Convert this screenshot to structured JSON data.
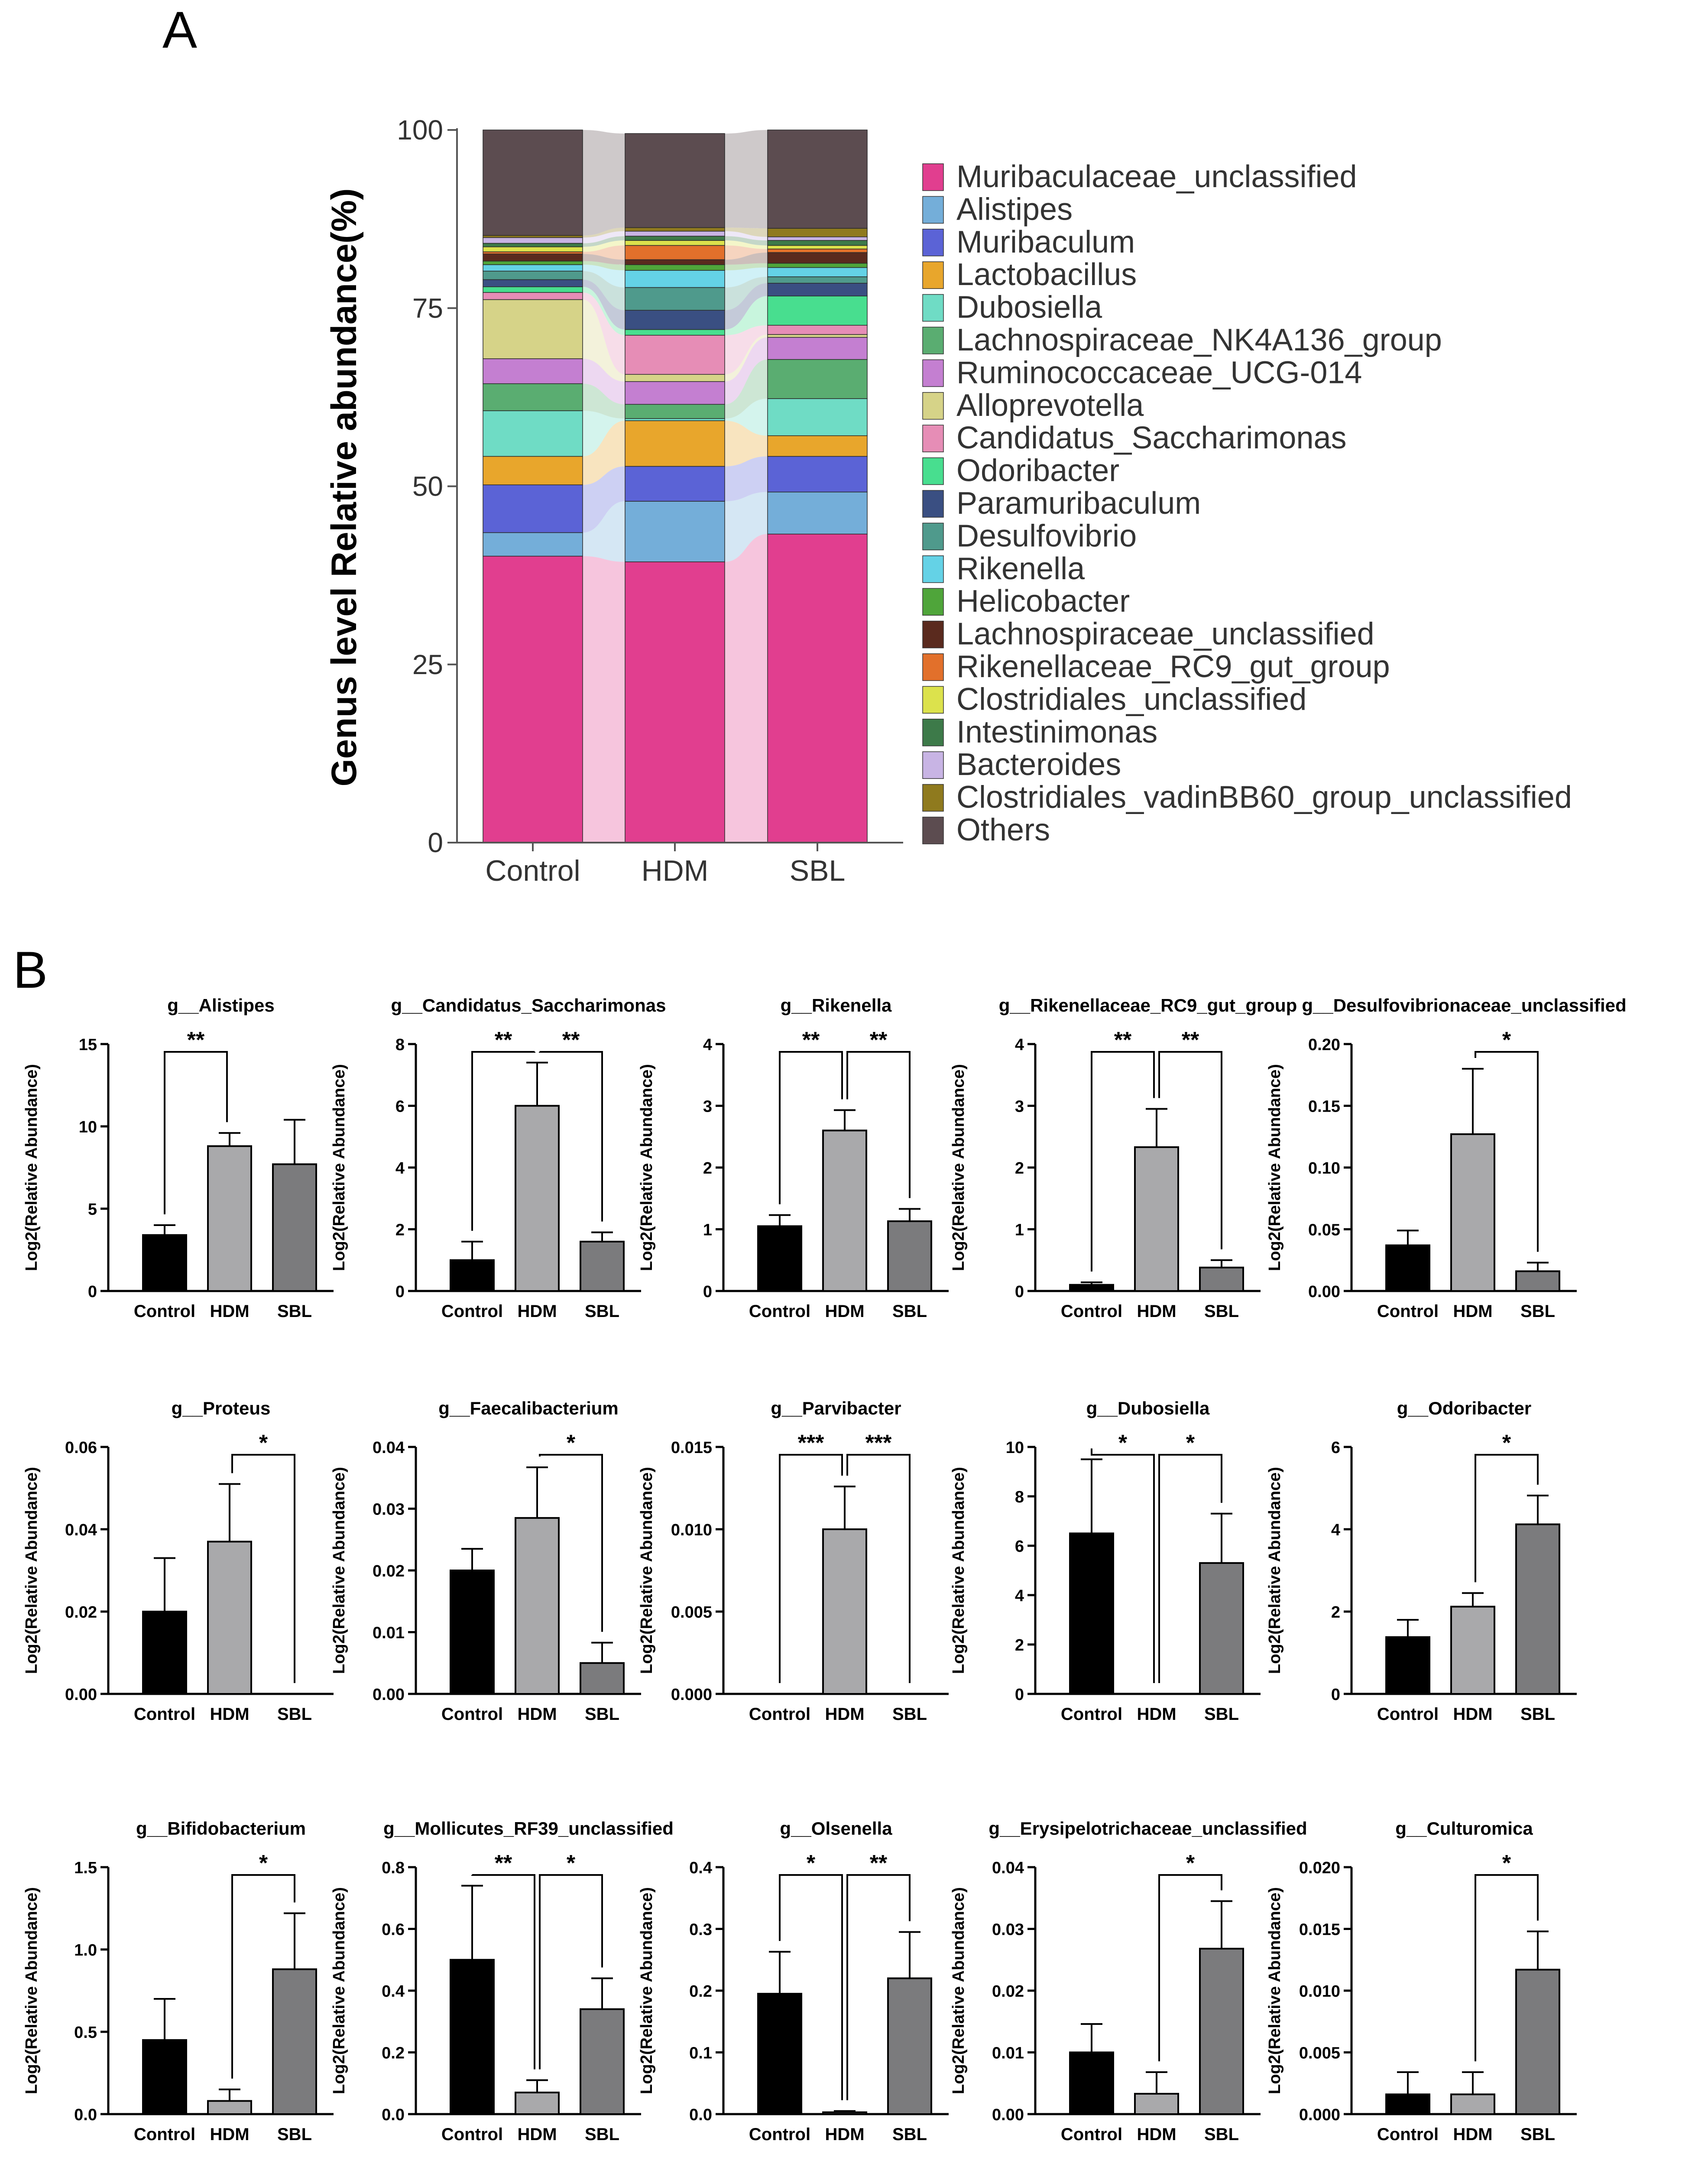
{
  "panels": {
    "a_label": "A",
    "b_label": "B"
  },
  "chart_data": [
    {
      "type": "stacked-bar",
      "title": "",
      "ylabel": "Genus level Relative abundance(%)",
      "ylim": [
        0,
        100
      ],
      "yticks": [
        "0",
        "25",
        "50",
        "75",
        "100"
      ],
      "categories": [
        "Control",
        "HDM",
        "SBL"
      ],
      "series": [
        {
          "name": "Muribaculaceae_unclassified",
          "color": "#e13e8f",
          "values": [
            40.2,
            39.4,
            43.3
          ]
        },
        {
          "name": "Alistipes",
          "color": "#74aed9",
          "values": [
            3.3,
            8.5,
            5.9
          ]
        },
        {
          "name": "Muribaculum",
          "color": "#5b63d6",
          "values": [
            6.7,
            4.9,
            5.0
          ]
        },
        {
          "name": "Lactobacillus",
          "color": "#e8a62c",
          "values": [
            4.0,
            6.4,
            2.9
          ]
        },
        {
          "name": "Dubosiella",
          "color": "#6fdcc5",
          "values": [
            6.4,
            0.3,
            5.2
          ]
        },
        {
          "name": "Lachnospiraceae_NK4A136_group",
          "color": "#5aad71",
          "values": [
            3.8,
            2.0,
            5.5
          ]
        },
        {
          "name": "Ruminococcaceae_UCG-014",
          "color": "#c47fd1",
          "values": [
            3.5,
            3.2,
            3.1
          ]
        },
        {
          "name": "Alloprevotella",
          "color": "#d6d388",
          "values": [
            8.3,
            1.0,
            0.4
          ]
        },
        {
          "name": "Candidatus_Saccharimonas",
          "color": "#e68db6",
          "values": [
            1.0,
            5.5,
            1.3
          ]
        },
        {
          "name": "Odoribacter",
          "color": "#48de8f",
          "values": [
            0.8,
            0.8,
            4.1
          ]
        },
        {
          "name": "Paramuribaculum",
          "color": "#3a4f82",
          "values": [
            1.0,
            2.7,
            1.8
          ]
        },
        {
          "name": "Desulfovibrio",
          "color": "#4f9a8c",
          "values": [
            1.2,
            3.2,
            0.9
          ]
        },
        {
          "name": "Rikenella",
          "color": "#64d2e6",
          "values": [
            0.9,
            2.4,
            1.3
          ]
        },
        {
          "name": "Helicobacter",
          "color": "#4fa53a",
          "values": [
            0.5,
            0.8,
            0.6
          ]
        },
        {
          "name": "Lachnospiraceae_unclassified",
          "color": "#5a2a1e",
          "values": [
            1.0,
            0.7,
            1.5
          ]
        },
        {
          "name": "Rikenellaceae_RC9_gut_group",
          "color": "#e2702b",
          "values": [
            0.3,
            2.0,
            0.5
          ]
        },
        {
          "name": "Clostridiales_unclassified",
          "color": "#dce24c",
          "values": [
            0.7,
            0.7,
            0.5
          ]
        },
        {
          "name": "Intestinimonas",
          "color": "#3d7a49",
          "values": [
            0.5,
            0.6,
            0.7
          ]
        },
        {
          "name": "Bacteroides",
          "color": "#c8b4e4",
          "values": [
            0.8,
            0.7,
            0.5
          ]
        },
        {
          "name": "Clostridiales_vadinBB60_group_unclassified",
          "color": "#8f7a1e",
          "values": [
            0.3,
            0.5,
            1.2
          ]
        },
        {
          "name": "Others",
          "color": "#5c4c50",
          "values": [
            14.8,
            13.2,
            13.8
          ]
        }
      ]
    },
    {
      "type": "bar",
      "title": "g__Alistipes",
      "ylabel": "Log2(Relative Abundance)",
      "categories": [
        "Control",
        "HDM",
        "SBL"
      ],
      "values": [
        3.4,
        8.8,
        7.7
      ],
      "errors": [
        0.6,
        0.8,
        2.7
      ],
      "ylim": [
        0,
        15
      ],
      "yticks": [
        "0",
        "5",
        "10",
        "15"
      ],
      "significance": [
        {
          "from": 0,
          "to": 1,
          "label": "**"
        }
      ]
    },
    {
      "type": "bar",
      "title": "g__Candidatus_Saccharimonas",
      "ylabel": "Log2(Relative Abundance)",
      "categories": [
        "Control",
        "HDM",
        "SBL"
      ],
      "values": [
        1.0,
        6.0,
        1.6
      ],
      "errors": [
        0.6,
        1.4,
        0.3
      ],
      "ylim": [
        0,
        8
      ],
      "yticks": [
        "0",
        "2",
        "4",
        "6",
        "8"
      ],
      "significance": [
        {
          "from": 0,
          "to": 1,
          "label": "**"
        },
        {
          "from": 1,
          "to": 2,
          "label": "**"
        }
      ]
    },
    {
      "type": "bar",
      "title": "g__Rikenella",
      "ylabel": "Log2(Relative Abundance)",
      "categories": [
        "Control",
        "HDM",
        "SBL"
      ],
      "values": [
        1.05,
        2.6,
        1.13
      ],
      "errors": [
        0.18,
        0.33,
        0.2
      ],
      "ylim": [
        0,
        4
      ],
      "yticks": [
        "0",
        "1",
        "2",
        "3",
        "4"
      ],
      "significance": [
        {
          "from": 0,
          "to": 1,
          "label": "**"
        },
        {
          "from": 1,
          "to": 2,
          "label": "**"
        }
      ]
    },
    {
      "type": "bar",
      "title": "g__Rikenellaceae_RC9_gut_group",
      "ylabel": "Log2(Relative Abundance)",
      "categories": [
        "Control",
        "HDM",
        "SBL"
      ],
      "values": [
        0.1,
        2.33,
        0.38
      ],
      "errors": [
        0.04,
        0.62,
        0.12
      ],
      "ylim": [
        0,
        4
      ],
      "yticks": [
        "0",
        "1",
        "2",
        "3",
        "4"
      ],
      "significance": [
        {
          "from": 0,
          "to": 1,
          "label": "**"
        },
        {
          "from": 1,
          "to": 2,
          "label": "**"
        }
      ]
    },
    {
      "type": "bar",
      "title": "g__Desulfovibrionaceae_unclassified",
      "ylabel": "Log2(Relative Abundance)",
      "categories": [
        "Control",
        "HDM",
        "SBL"
      ],
      "values": [
        0.037,
        0.127,
        0.016
      ],
      "errors": [
        0.012,
        0.053,
        0.007
      ],
      "ylim": [
        0,
        0.2
      ],
      "yticks": [
        "0.00",
        "0.05",
        "0.10",
        "0.15",
        "0.20"
      ],
      "significance": [
        {
          "from": 1,
          "to": 2,
          "label": "*"
        }
      ]
    },
    {
      "type": "bar",
      "title": "g__Proteus",
      "ylabel": "Log2(Relative Abundance)",
      "categories": [
        "Control",
        "HDM",
        "SBL"
      ],
      "values": [
        0.02,
        0.037,
        0.0
      ],
      "errors": [
        0.013,
        0.014,
        0.0
      ],
      "ylim": [
        0,
        0.06
      ],
      "yticks": [
        "0.00",
        "0.02",
        "0.04",
        "0.06"
      ],
      "significance": [
        {
          "from": 1,
          "to": 2,
          "label": "*"
        }
      ]
    },
    {
      "type": "bar",
      "title": "g__Faecalibacterium",
      "ylabel": "Log2(Relative Abundance)",
      "categories": [
        "Control",
        "HDM",
        "SBL"
      ],
      "values": [
        0.02,
        0.0285,
        0.005
      ],
      "errors": [
        0.0035,
        0.0082,
        0.0033
      ],
      "ylim": [
        0,
        0.04
      ],
      "yticks": [
        "0.00",
        "0.01",
        "0.02",
        "0.03",
        "0.04"
      ],
      "significance": [
        {
          "from": 1,
          "to": 2,
          "label": "*"
        }
      ]
    },
    {
      "type": "bar",
      "title": "g__Parvibacter",
      "ylabel": "Log2(Relative Abundance)",
      "categories": [
        "Control",
        "HDM",
        "SBL"
      ],
      "values": [
        0.0,
        0.01,
        0.0
      ],
      "errors": [
        0.0,
        0.0026,
        0.0
      ],
      "ylim": [
        0,
        0.015
      ],
      "yticks": [
        "0.000",
        "0.005",
        "0.010",
        "0.015"
      ],
      "significance": [
        {
          "from": 0,
          "to": 1,
          "label": "***"
        },
        {
          "from": 1,
          "to": 2,
          "label": "***"
        }
      ]
    },
    {
      "type": "bar",
      "title": "g__Dubosiella",
      "ylabel": "Log2(Relative Abundance)",
      "categories": [
        "Control",
        "HDM",
        "SBL"
      ],
      "values": [
        6.5,
        0.0,
        5.3
      ],
      "errors": [
        3.0,
        0.0,
        2.0
      ],
      "ylim": [
        0,
        10
      ],
      "yticks": [
        "0",
        "2",
        "4",
        "6",
        "8",
        "10"
      ],
      "significance": [
        {
          "from": 0,
          "to": 1,
          "label": "*"
        },
        {
          "from": 1,
          "to": 2,
          "label": "*"
        }
      ]
    },
    {
      "type": "bar",
      "title": "g__Odoribacter",
      "ylabel": "Log2(Relative Abundance)",
      "categories": [
        "Control",
        "HDM",
        "SBL"
      ],
      "values": [
        1.38,
        2.12,
        4.12
      ],
      "errors": [
        0.42,
        0.33,
        0.7
      ],
      "ylim": [
        0,
        6
      ],
      "yticks": [
        "0",
        "2",
        "4",
        "6"
      ],
      "significance": [
        {
          "from": 1,
          "to": 2,
          "label": "*"
        }
      ]
    },
    {
      "type": "bar",
      "title": "g__Bifidobacterium",
      "ylabel": "Log2(Relative Abundance)",
      "categories": [
        "Control",
        "HDM",
        "SBL"
      ],
      "values": [
        0.45,
        0.08,
        0.88
      ],
      "errors": [
        0.25,
        0.07,
        0.34
      ],
      "ylim": [
        0,
        1.5
      ],
      "yticks": [
        "0.0",
        "0.5",
        "1.0",
        "1.5"
      ],
      "significance": [
        {
          "from": 1,
          "to": 2,
          "label": "*"
        }
      ]
    },
    {
      "type": "bar",
      "title": "g__Mollicutes_RF39_unclassified",
      "ylabel": "Log2(Relative Abundance)",
      "categories": [
        "Control",
        "HDM",
        "SBL"
      ],
      "values": [
        0.5,
        0.07,
        0.34
      ],
      "errors": [
        0.24,
        0.04,
        0.1
      ],
      "ylim": [
        0,
        0.8
      ],
      "yticks": [
        "0.0",
        "0.2",
        "0.4",
        "0.6",
        "0.8"
      ],
      "significance": [
        {
          "from": 0,
          "to": 1,
          "label": "**"
        },
        {
          "from": 1,
          "to": 2,
          "label": "*"
        }
      ]
    },
    {
      "type": "bar",
      "title": "g__Olsenella",
      "ylabel": "Log2(Relative Abundance)",
      "categories": [
        "Control",
        "HDM",
        "SBL"
      ],
      "values": [
        0.195,
        0.003,
        0.22
      ],
      "errors": [
        0.068,
        0.002,
        0.075
      ],
      "ylim": [
        0,
        0.4
      ],
      "yticks": [
        "0.0",
        "0.1",
        "0.2",
        "0.3",
        "0.4"
      ],
      "significance": [
        {
          "from": 0,
          "to": 1,
          "label": "*"
        },
        {
          "from": 1,
          "to": 2,
          "label": "**"
        }
      ]
    },
    {
      "type": "bar",
      "title": "g__Erysipelotrichaceae_unclassified",
      "ylabel": "Log2(Relative Abundance)",
      "categories": [
        "Control",
        "HDM",
        "SBL"
      ],
      "values": [
        0.01,
        0.0033,
        0.0268
      ],
      "errors": [
        0.0046,
        0.0035,
        0.0077
      ],
      "ylim": [
        0,
        0.04
      ],
      "yticks": [
        "0.00",
        "0.01",
        "0.02",
        "0.03",
        "0.04"
      ],
      "significance": [
        {
          "from": 1,
          "to": 2,
          "label": "*"
        }
      ]
    },
    {
      "type": "bar",
      "title": "g__Culturomica",
      "ylabel": "Log2(Relative Abundance)",
      "categories": [
        "Control",
        "HDM",
        "SBL"
      ],
      "values": [
        0.0016,
        0.0016,
        0.0117
      ],
      "errors": [
        0.0018,
        0.0018,
        0.0031
      ],
      "ylim": [
        0,
        0.02
      ],
      "yticks": [
        "0.000",
        "0.005",
        "0.010",
        "0.015",
        "0.020"
      ],
      "significance": [
        {
          "from": 1,
          "to": 2,
          "label": "*"
        }
      ]
    }
  ]
}
